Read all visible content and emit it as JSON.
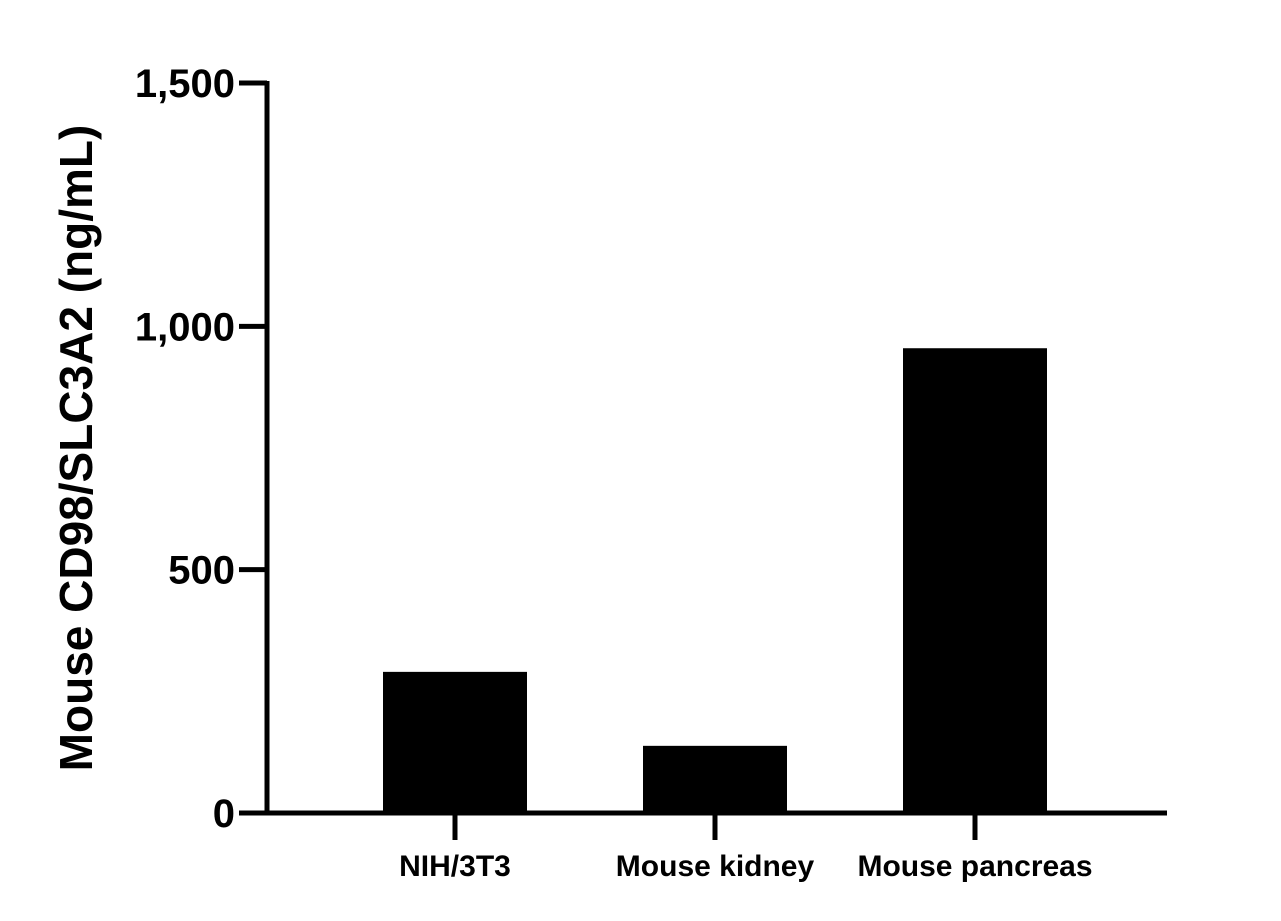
{
  "chart_data": {
    "type": "bar",
    "title": "",
    "xlabel": "",
    "ylabel": "Mouse CD98/SLC3A2 (ng/mL)",
    "categories": [
      "NIH/3T3",
      "Mouse kidney",
      "Mouse pancreas"
    ],
    "values": [
      290,
      138,
      955
    ],
    "ylim": [
      0,
      1500
    ],
    "yticks": [
      0,
      500,
      1000,
      1500
    ],
    "ytick_labels": [
      "0",
      "500",
      "1,000",
      "1,500"
    ],
    "bar_color": "#000000",
    "grid": false,
    "legend": "none"
  }
}
